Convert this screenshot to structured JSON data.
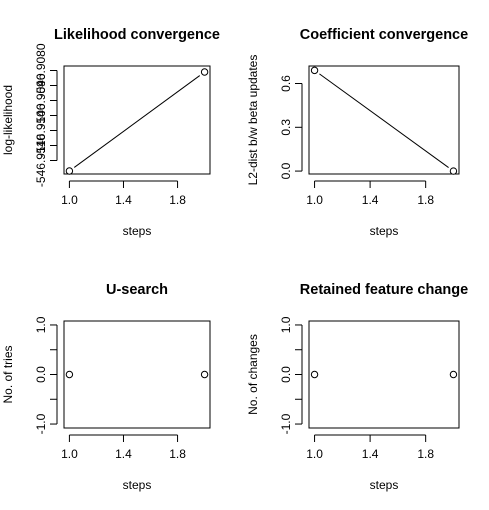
{
  "chart_data": [
    {
      "type": "line",
      "title": "Likelihood convergence",
      "xlabel": "steps",
      "ylabel": "log-likelihood",
      "x": [
        1,
        2
      ],
      "y": [
        -546.91135,
        -546.90805
      ],
      "markers": "open-circle",
      "xlim": [
        0.96,
        2.04
      ],
      "ylim": [
        -546.91145,
        -546.90785
      ],
      "xticks": [
        1.0,
        1.4,
        1.8
      ],
      "xtick_labels": [
        "1.0",
        "1.4",
        "1.8"
      ],
      "yticks": [
        -546.911,
        -546.9105,
        -546.91,
        -546.9095,
        -546.909,
        -546.9085,
        -546.908
      ],
      "ytick_labels": [
        "-546.9110",
        "",
        "-546.9100",
        "",
        "-546.9090",
        "",
        "-546.9080"
      ]
    },
    {
      "type": "line",
      "title": "Coefficient convergence",
      "xlabel": "steps",
      "ylabel": "L2-dist b/w beta updates",
      "x": [
        1,
        2
      ],
      "y": [
        0.69,
        0.0
      ],
      "markers": "open-circle",
      "xlim": [
        0.96,
        2.04
      ],
      "ylim": [
        -0.02,
        0.72
      ],
      "xticks": [
        1.0,
        1.4,
        1.8
      ],
      "xtick_labels": [
        "1.0",
        "1.4",
        "1.8"
      ],
      "yticks": [
        0.0,
        0.3,
        0.6
      ],
      "ytick_labels": [
        "0.0",
        "0.3",
        "0.6"
      ]
    },
    {
      "type": "scatter",
      "title": "U-search",
      "xlabel": "steps",
      "ylabel": "No. of tries",
      "x": [
        1,
        2
      ],
      "y": [
        0,
        0
      ],
      "markers": "open-circle",
      "xlim": [
        0.96,
        2.04
      ],
      "ylim": [
        -1.08,
        1.08
      ],
      "xticks": [
        1.0,
        1.4,
        1.8
      ],
      "xtick_labels": [
        "1.0",
        "1.4",
        "1.8"
      ],
      "yticks": [
        -1.0,
        -0.5,
        0.0,
        0.5,
        1.0
      ],
      "ytick_labels": [
        "-1.0",
        "",
        "0.0",
        "",
        "1.0"
      ]
    },
    {
      "type": "scatter",
      "title": "Retained feature change",
      "xlabel": "steps",
      "ylabel": "No. of changes",
      "x": [
        1,
        2
      ],
      "y": [
        0,
        0
      ],
      "markers": "open-circle",
      "xlim": [
        0.96,
        2.04
      ],
      "ylim": [
        -1.08,
        1.08
      ],
      "xticks": [
        1.0,
        1.4,
        1.8
      ],
      "xtick_labels": [
        "1.0",
        "1.4",
        "1.8"
      ],
      "yticks": [
        -1.0,
        -0.5,
        0.0,
        0.5,
        1.0
      ],
      "ytick_labels": [
        "-1.0",
        "",
        "0.0",
        "",
        "1.0"
      ]
    }
  ]
}
